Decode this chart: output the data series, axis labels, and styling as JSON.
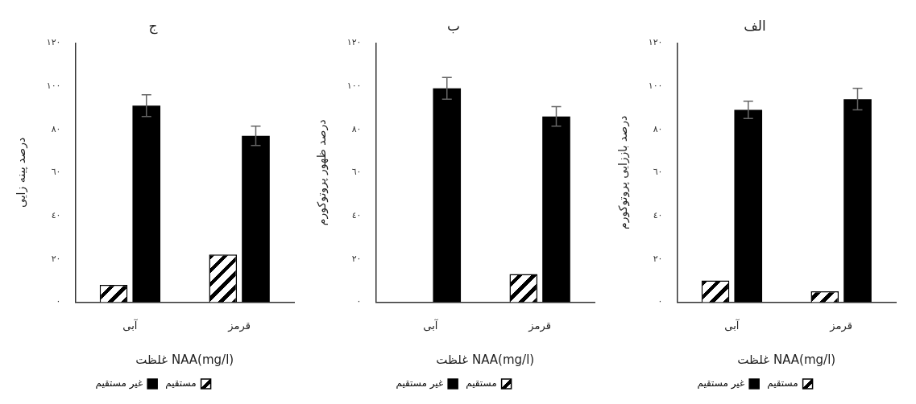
{
  "chart_data": [
    {
      "type": "bar",
      "title": "الف",
      "xlabel": "غلظت NAA(mg/l)",
      "ylabel": "درصد باززایی پروتوکورم",
      "categories": [
        "آبی",
        "قرمز"
      ],
      "series": [
        {
          "name": "مستقیم",
          "color": "#ffffff",
          "values": [
            10,
            5
          ]
        },
        {
          "name": "غیر مستقیم",
          "color": "#000000",
          "values": [
            89,
            94
          ],
          "errors": [
            4,
            5
          ]
        }
      ],
      "ylim": [
        0,
        120
      ],
      "yticks": [
        {
          "value": 0,
          "label": "٠"
        },
        {
          "value": 20,
          "label": "٢٠"
        },
        {
          "value": 40,
          "label": "٤٠"
        },
        {
          "value": 60,
          "label": "٦٠"
        },
        {
          "value": 80,
          "label": "٨٠"
        },
        {
          "value": 100,
          "label": "١٠٠"
        },
        {
          "value": 120,
          "label": "١٢٠"
        }
      ],
      "legend": "bottom"
    },
    {
      "type": "bar",
      "title": "ب",
      "xlabel": "غلظت NAA(mg/l)",
      "ylabel": "درصد ظهور پروتوکورم",
      "categories": [
        "آبی",
        "قرمز"
      ],
      "series": [
        {
          "name": "مستقیم",
          "color": "#ffffff",
          "values": [
            0,
            13
          ]
        },
        {
          "name": "غیر مستقیم",
          "color": "#000000",
          "values": [
            99,
            86
          ],
          "errors": [
            5,
            4.5
          ]
        }
      ],
      "ylim": [
        0,
        120
      ],
      "yticks": [
        {
          "value": 0,
          "label": "٠"
        },
        {
          "value": 20,
          "label": "٢٠"
        },
        {
          "value": 40,
          "label": "٤٠"
        },
        {
          "value": 60,
          "label": "٦٠"
        },
        {
          "value": 80,
          "label": "٨٠"
        },
        {
          "value": 100,
          "label": "١٠٠"
        },
        {
          "value": 120,
          "label": "١٢٠"
        }
      ],
      "legend": "bottom"
    },
    {
      "type": "bar",
      "title": "ج",
      "xlabel": "غلظت NAA(mg/l)",
      "ylabel": "درصد پینه زایی",
      "categories": [
        "آبی",
        "قرمز"
      ],
      "series": [
        {
          "name": "مستقیم",
          "color": "#ffffff",
          "values": [
            8,
            22
          ]
        },
        {
          "name": "غیر مستقیم",
          "color": "#000000",
          "values": [
            91,
            77
          ],
          "errors": [
            5,
            4.5
          ]
        }
      ],
      "ylim": [
        0,
        120
      ],
      "yticks": [
        {
          "value": 0,
          "label": "٠"
        },
        {
          "value": 20,
          "label": "٢٠"
        },
        {
          "value": 40,
          "label": "٤٠"
        },
        {
          "value": 60,
          "label": "٦٠"
        },
        {
          "value": 80,
          "label": "٨٠"
        },
        {
          "value": 100,
          "label": "١٠٠"
        },
        {
          "value": 120,
          "label": "١٢٠"
        }
      ],
      "legend": "bottom"
    }
  ]
}
